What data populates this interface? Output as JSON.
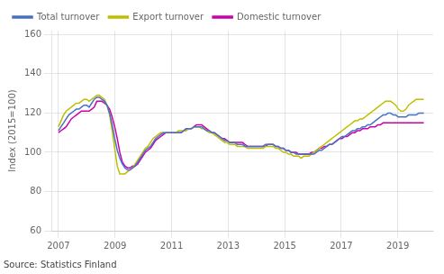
{
  "chart_data": {
    "type": "line",
    "ylabel": "Index (2015=100)",
    "annotations": [
      "Source: Statistics Finland"
    ],
    "x": [
      2007,
      2007.0903,
      2007.1807,
      2007.271,
      2007.3614,
      2007.4517,
      2007.5421,
      2007.6324,
      2007.7228,
      2007.8131,
      2007.9035,
      2007.9938,
      2008.0842,
      2008.1745,
      2008.2649,
      2008.3552,
      2008.4456,
      2008.5359,
      2008.6263,
      2008.7166,
      2008.807,
      2008.8973,
      2008.9877,
      2009.078,
      2009.1684,
      2009.2587,
      2009.3491,
      2009.4394,
      2009.5298,
      2009.6201,
      2009.7105,
      2009.8008,
      2009.8912,
      2009.9815,
      2010.0719,
      2010.1622,
      2010.2526,
      2010.3429,
      2010.4333,
      2010.5236,
      2010.614,
      2010.7043,
      2010.7947,
      2010.885,
      2010.9754,
      2011.0657,
      2011.1561,
      2011.2464,
      2011.3368,
      2011.4271,
      2011.5175,
      2011.6078,
      2011.6982,
      2011.7885,
      2011.8789,
      2011.9692,
      2012.0596,
      2012.1499,
      2012.2403,
      2012.3306,
      2012.421,
      2012.5113,
      2012.6017,
      2012.692,
      2012.7824,
      2012.8727,
      2012.9631,
      2013.0534,
      2013.1438,
      2013.2341,
      2013.3245,
      2013.4148,
      2013.5052,
      2013.5955,
      2013.6859,
      2013.7762,
      2013.8666,
      2013.9569,
      2014.0473,
      2014.1376,
      2014.228,
      2014.3183,
      2014.4087,
      2014.499,
      2014.5894,
      2014.6797,
      2014.7701,
      2014.8604,
      2014.9508,
      2015.0411,
      2015.1315,
      2015.2218,
      2015.3122,
      2015.4025,
      2015.4929,
      2015.5832,
      2015.6736,
      2015.7639,
      2015.8543,
      2015.9446,
      2016.035,
      2016.1253,
      2016.2157,
      2016.306,
      2016.3964,
      2016.4867,
      2016.5771,
      2016.6674,
      2016.7578,
      2016.8481,
      2016.9385,
      2017.0288,
      2017.1192,
      2017.2095,
      2017.2999,
      2017.3902,
      2017.4806,
      2017.5709,
      2017.6613,
      2017.7516,
      2017.842,
      2017.9323,
      2018.0227,
      2018.113,
      2018.2034,
      2018.2937,
      2018.3841,
      2018.4744,
      2018.5648,
      2018.6551,
      2018.7455,
      2018.8358,
      2018.9262,
      2019.0165,
      2019.1069,
      2019.1972,
      2019.2876,
      2019.3779,
      2019.4683,
      2019.5586,
      2019.649,
      2019.7393,
      2019.8297,
      2019.92
    ],
    "series": [
      {
        "name": "Total turnover",
        "color": "#4472c4",
        "values": [
          111,
          113,
          115,
          117,
          119,
          120,
          121,
          122,
          122,
          123,
          124,
          124,
          123,
          125,
          127,
          128,
          128,
          127,
          126,
          124,
          120,
          114,
          107,
          101,
          97,
          94,
          92,
          91,
          91,
          92,
          93,
          95,
          97,
          99,
          101,
          102,
          103,
          105,
          107,
          108,
          109,
          110,
          110,
          110,
          110,
          110,
          110,
          110,
          110,
          111,
          112,
          112,
          112,
          113,
          113,
          113,
          113,
          112,
          111,
          111,
          110,
          110,
          109,
          108,
          107,
          106,
          106,
          105,
          105,
          105,
          104,
          104,
          104,
          103,
          103,
          103,
          103,
          103,
          103,
          103,
          103,
          104,
          104,
          104,
          104,
          103,
          103,
          102,
          102,
          101,
          101,
          100,
          100,
          99,
          99,
          99,
          99,
          99,
          99,
          99,
          99,
          100,
          101,
          101,
          102,
          103,
          104,
          104,
          105,
          106,
          107,
          108,
          108,
          109,
          110,
          111,
          111,
          112,
          112,
          113,
          113,
          114,
          114,
          115,
          116,
          117,
          118,
          119,
          119,
          120,
          120,
          119,
          119,
          118,
          118,
          118,
          118,
          119,
          119,
          119,
          119,
          120,
          120,
          120
        ]
      },
      {
        "name": "Export turnover",
        "color": "#bfbf00",
        "values": [
          113,
          116,
          119,
          121,
          122,
          123,
          124,
          125,
          125,
          126,
          127,
          127,
          126,
          127,
          128,
          129,
          129,
          128,
          127,
          124,
          119,
          111,
          102,
          93,
          89,
          89,
          89,
          90,
          91,
          92,
          94,
          96,
          98,
          100,
          102,
          103,
          105,
          107,
          108,
          109,
          110,
          110,
          110,
          110,
          110,
          110,
          110,
          111,
          111,
          111,
          111,
          112,
          112,
          113,
          113,
          113,
          112,
          112,
          111,
          110,
          110,
          109,
          108,
          107,
          106,
          105,
          105,
          104,
          104,
          104,
          103,
          103,
          103,
          103,
          102,
          102,
          102,
          102,
          102,
          102,
          102,
          103,
          103,
          103,
          103,
          102,
          102,
          101,
          100,
          100,
          99,
          99,
          98,
          98,
          98,
          97,
          98,
          98,
          98,
          99,
          100,
          101,
          102,
          103,
          104,
          105,
          106,
          107,
          108,
          109,
          110,
          111,
          112,
          113,
          114,
          115,
          116,
          116,
          117,
          117,
          118,
          119,
          120,
          121,
          122,
          123,
          124,
          125,
          126,
          126,
          126,
          125,
          124,
          122,
          121,
          121,
          122,
          124,
          125,
          126,
          127,
          127,
          127,
          127
        ]
      },
      {
        "name": "Domestic turnover",
        "color": "#cc00aa",
        "values": [
          110,
          111,
          112,
          113,
          115,
          117,
          118,
          119,
          120,
          121,
          121,
          121,
          121,
          122,
          123,
          126,
          126,
          126,
          125,
          124,
          122,
          118,
          113,
          107,
          100,
          95,
          93,
          92,
          92,
          93,
          93,
          94,
          96,
          98,
          100,
          101,
          102,
          104,
          106,
          107,
          108,
          109,
          110,
          110,
          110,
          110,
          110,
          110,
          110,
          111,
          112,
          112,
          112,
          113,
          114,
          114,
          114,
          113,
          112,
          111,
          110,
          110,
          109,
          108,
          107,
          107,
          106,
          105,
          105,
          105,
          105,
          105,
          105,
          104,
          103,
          103,
          103,
          103,
          103,
          103,
          103,
          103,
          104,
          104,
          104,
          103,
          103,
          102,
          102,
          101,
          101,
          100,
          100,
          100,
          99,
          99,
          99,
          99,
          99,
          100,
          100,
          101,
          102,
          102,
          103,
          103,
          104,
          104,
          105,
          106,
          107,
          107,
          108,
          108,
          109,
          110,
          110,
          111,
          111,
          112,
          112,
          112,
          113,
          113,
          113,
          114,
          114,
          115,
          115,
          115,
          115,
          115,
          115,
          115,
          115,
          115,
          115,
          115,
          115,
          115,
          115,
          115,
          115,
          115
        ]
      }
    ],
    "xlim": [
      2006.75,
      2020.25
    ],
    "xticks": [
      2007,
      2009,
      2011,
      2013,
      2015,
      2017,
      2019
    ],
    "ylim": [
      60,
      162
    ],
    "yticks": [
      60,
      80,
      100,
      120,
      140,
      160
    ],
    "grid": true,
    "legend": "upper left"
  }
}
